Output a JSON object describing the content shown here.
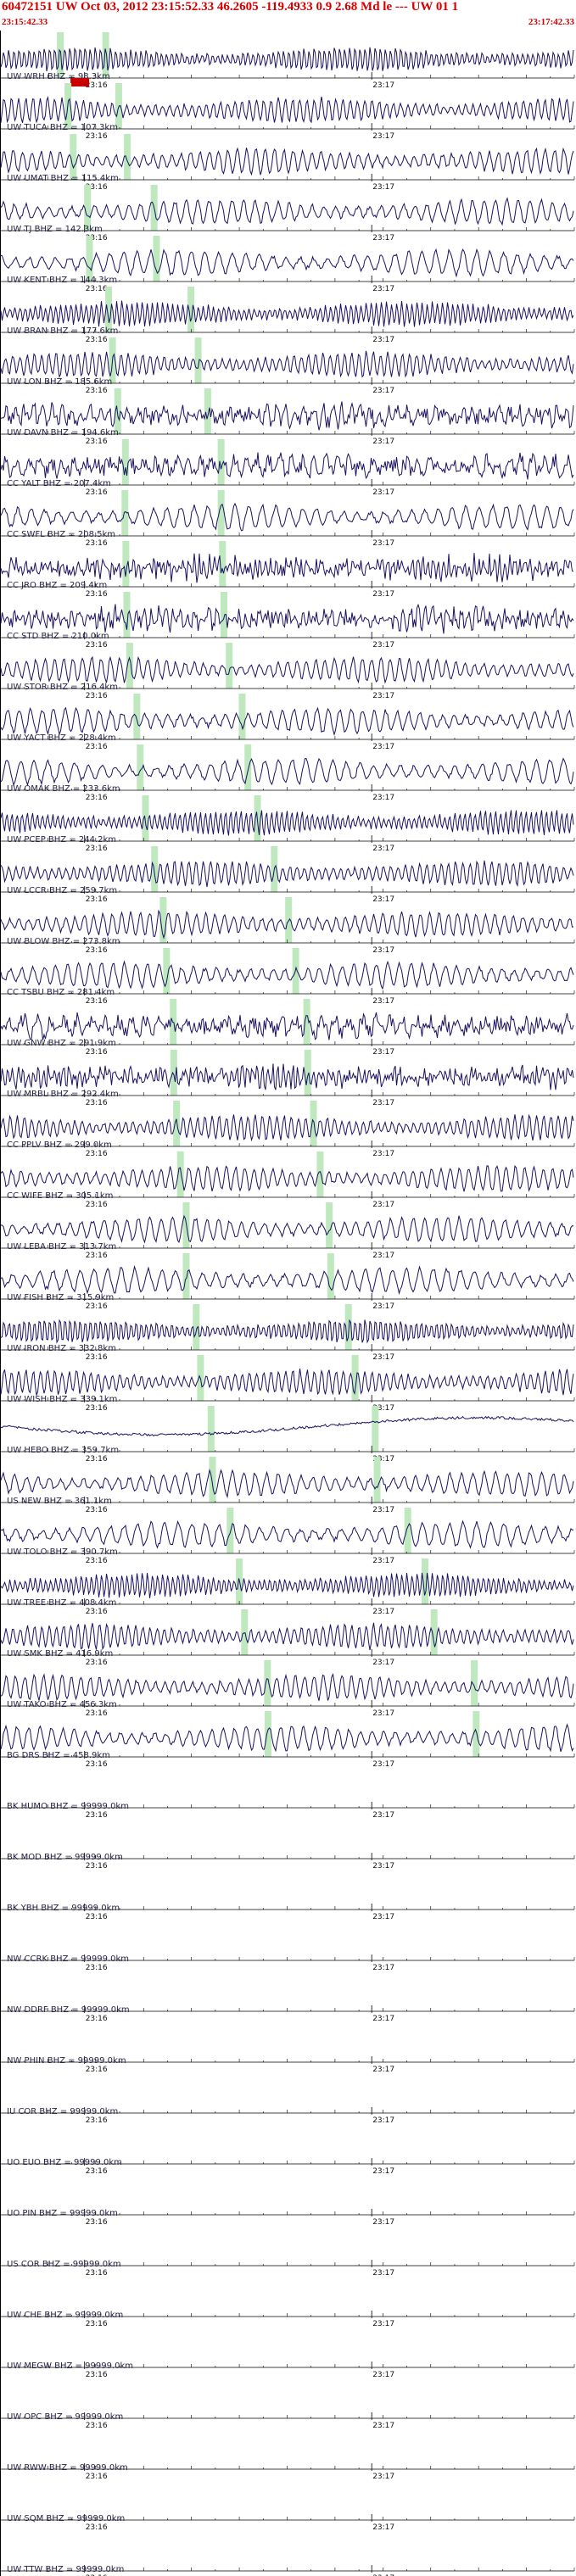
{
  "header": {
    "title": "60472151 UW Oct 03, 2012 23:15:52.33   46.2605 -119.4933  0.9 2.68 Md le --- UW 01   1",
    "start_time": "23:15:42.33",
    "end_time": "23:17:42.33"
  },
  "colors": {
    "trace": "#1a1060",
    "title": "#d40000",
    "pick_band": "#bfe8bf",
    "pick_marker": "#c80000",
    "axis": "#000000"
  },
  "chart_data": {
    "type": "line",
    "title": "60472151 UW Oct 03, 2012 23:15:52.33   46.2605 -119.4933  0.9 2.68 Md le --- UW 01   1",
    "x_start": "23:15:42.33",
    "x_end": "23:17:42.33",
    "xlim_seconds": [
      0,
      120
    ],
    "x_tick_labels": [
      "23:16",
      "23:17"
    ],
    "x_tick_seconds": [
      17.67,
      77.67
    ],
    "grid": false,
    "legend": "none",
    "series": [
      {
        "name": "UW WRH BHZ",
        "distance_km": 98.3,
        "has_data": true,
        "p_arrival_s": 12.6,
        "s_arrival_s": 22.1,
        "picked": true
      },
      {
        "name": "UW TUCA BHZ",
        "distance_km": 107.3,
        "has_data": true,
        "p_arrival_s": 14.1,
        "s_arrival_s": 24.7
      },
      {
        "name": "UW UMAT BHZ",
        "distance_km": 115.4,
        "has_data": true,
        "p_arrival_s": 15.1,
        "s_arrival_s": 26.4
      },
      {
        "name": "UW TJ BHZ",
        "distance_km": 142.3,
        "has_data": true,
        "p_arrival_s": 18.3,
        "s_arrival_s": 32.2
      },
      {
        "name": "UW KENT BHZ",
        "distance_km": 144.3,
        "has_data": true,
        "p_arrival_s": 18.6,
        "s_arrival_s": 32.6
      },
      {
        "name": "UW BRAN BHZ",
        "distance_km": 177.6,
        "has_data": true,
        "p_arrival_s": 22.5,
        "s_arrival_s": 39.7
      },
      {
        "name": "UW LON BHZ",
        "distance_km": 185.6,
        "has_data": true,
        "p_arrival_s": 23.5,
        "s_arrival_s": 41.4
      },
      {
        "name": "UW DAVN BHZ",
        "distance_km": 194.6,
        "has_data": true,
        "p_arrival_s": 24.5,
        "s_arrival_s": 43.3
      },
      {
        "name": "CC YALT BHZ",
        "distance_km": 207.4,
        "has_data": true,
        "p_arrival_s": 26.0,
        "s_arrival_s": 46.0
      },
      {
        "name": "CC SWFL BHZ",
        "distance_km": 208.5,
        "has_data": true,
        "p_arrival_s": 26.1,
        "s_arrival_s": 46.2
      },
      {
        "name": "CC JRO BHZ",
        "distance_km": 209.4,
        "has_data": true,
        "p_arrival_s": 26.2,
        "s_arrival_s": 46.4
      },
      {
        "name": "CC STD BHZ",
        "distance_km": 210.0,
        "has_data": true,
        "p_arrival_s": 26.3,
        "s_arrival_s": 46.6
      },
      {
        "name": "UW STOR BHZ",
        "distance_km": 216.4,
        "has_data": true,
        "p_arrival_s": 27.1,
        "s_arrival_s": 47.9
      },
      {
        "name": "UW YACT BHZ",
        "distance_km": 228.4,
        "has_data": true,
        "p_arrival_s": 28.5,
        "s_arrival_s": 50.5
      },
      {
        "name": "UW OMAK BHZ",
        "distance_km": 233.6,
        "has_data": true,
        "p_arrival_s": 29.1,
        "s_arrival_s": 51.6
      },
      {
        "name": "UW PCEP BHZ",
        "distance_km": 244.2,
        "has_data": true,
        "p_arrival_s": 30.4,
        "s_arrival_s": 53.8
      },
      {
        "name": "UW LCCR BHZ",
        "distance_km": 259.7,
        "has_data": true,
        "p_arrival_s": 32.2,
        "s_arrival_s": 57.2
      },
      {
        "name": "UW BLOW BHZ",
        "distance_km": 273.8,
        "has_data": true,
        "p_arrival_s": 33.9,
        "s_arrival_s": 60.1
      },
      {
        "name": "CC TSBU BHZ",
        "distance_km": 281.4,
        "has_data": true,
        "p_arrival_s": 34.8,
        "s_arrival_s": 61.8
      },
      {
        "name": "UW GNW BHZ",
        "distance_km": 291.9,
        "has_data": true,
        "p_arrival_s": 36.1,
        "s_arrival_s": 64.0
      },
      {
        "name": "UW MRBL BHZ",
        "distance_km": 292.4,
        "has_data": true,
        "p_arrival_s": 36.1,
        "s_arrival_s": 64.1
      },
      {
        "name": "CC PPLV BHZ",
        "distance_km": 299.0,
        "has_data": true,
        "p_arrival_s": 36.9,
        "s_arrival_s": 65.5
      },
      {
        "name": "CC WIFE BHZ",
        "distance_km": 305.1,
        "has_data": true,
        "p_arrival_s": 37.6,
        "s_arrival_s": 66.8
      },
      {
        "name": "UW LEBA BHZ",
        "distance_km": 313.7,
        "has_data": true,
        "p_arrival_s": 38.7,
        "s_arrival_s": 68.6
      },
      {
        "name": "UW FISH BHZ",
        "distance_km": 315.9,
        "has_data": true,
        "p_arrival_s": 38.9,
        "s_arrival_s": 69.1
      },
      {
        "name": "UW IRON BHZ",
        "distance_km": 332.8,
        "has_data": true,
        "p_arrival_s": 40.9,
        "s_arrival_s": 72.7
      },
      {
        "name": "UW WISH BHZ",
        "distance_km": 339.1,
        "has_data": true,
        "p_arrival_s": 41.7,
        "s_arrival_s": 74.0
      },
      {
        "name": "UW HEBO BHZ",
        "distance_km": 359.7,
        "has_data": true,
        "p_arrival_s": 44.1,
        "s_arrival_s": 78.4
      },
      {
        "name": "US NEW BHZ",
        "distance_km": 361.1,
        "has_data": true,
        "p_arrival_s": 44.3,
        "s_arrival_s": 78.7
      },
      {
        "name": "UW TOLO BHZ",
        "distance_km": 390.7,
        "has_data": true,
        "p_arrival_s": 47.9,
        "s_arrival_s": 85.0
      },
      {
        "name": "UW TREE BHZ",
        "distance_km": 408.4,
        "has_data": true,
        "p_arrival_s": 50.0,
        "s_arrival_s": 88.8
      },
      {
        "name": "UW SMK BHZ",
        "distance_km": 416.9,
        "has_data": true,
        "p_arrival_s": 51.0,
        "s_arrival_s": 90.6
      },
      {
        "name": "UW TAKO BHZ",
        "distance_km": 456.3,
        "has_data": true,
        "p_arrival_s": 55.7,
        "s_arrival_s": 98.9
      },
      {
        "name": "BG DRS BHZ",
        "distance_km": 458.9,
        "has_data": true,
        "p_arrival_s": 56.0,
        "s_arrival_s": 99.5
      },
      {
        "name": "BK HUMO BHZ",
        "distance_km": 99999.0,
        "has_data": false
      },
      {
        "name": "BK MOD BHZ",
        "distance_km": 99999.0,
        "has_data": false
      },
      {
        "name": "BK YBH BHZ",
        "distance_km": 99999.0,
        "has_data": false
      },
      {
        "name": "NW CCRK BHZ",
        "distance_km": 99999.0,
        "has_data": false
      },
      {
        "name": "NW DDRF BHZ",
        "distance_km": 99999.0,
        "has_data": false
      },
      {
        "name": "NW PHIN BHZ",
        "distance_km": 99999.0,
        "has_data": false
      },
      {
        "name": "IU COR BHZ",
        "distance_km": 99999.0,
        "has_data": false
      },
      {
        "name": "UO EUO BHZ",
        "distance_km": 99999.0,
        "has_data": false
      },
      {
        "name": "UO PIN BHZ",
        "distance_km": 99999.0,
        "has_data": false
      },
      {
        "name": "US COR BHZ",
        "distance_km": 99999.0,
        "has_data": false
      },
      {
        "name": "UW CHE BHZ",
        "distance_km": 99999.0,
        "has_data": false
      },
      {
        "name": "UW MEGW BHZ",
        "distance_km": 99999.0,
        "has_data": false
      },
      {
        "name": "UW OPC BHZ",
        "distance_km": 99999.0,
        "has_data": false
      },
      {
        "name": "UW RWW BHZ",
        "distance_km": 99999.0,
        "has_data": false
      },
      {
        "name": "UW SQM BHZ",
        "distance_km": 99999.0,
        "has_data": false
      },
      {
        "name": "UW TTW BHZ",
        "distance_km": 99999.0,
        "has_data": false
      }
    ]
  }
}
